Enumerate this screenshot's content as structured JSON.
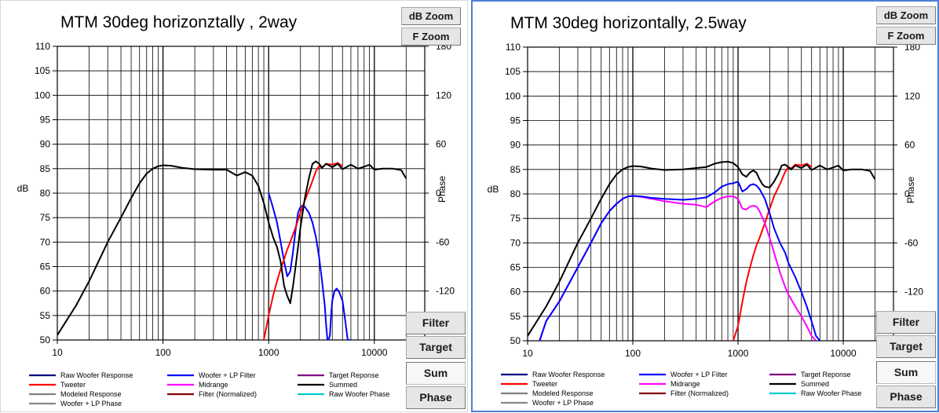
{
  "panels": [
    {
      "title": "MTM 30deg horizonztally , 2way",
      "buttons": {
        "db_zoom": "dB Zoom",
        "f_zoom": "F Zoom",
        "filter": "Filter",
        "target": "Target",
        "sum": "Sum",
        "phase": "Phase"
      }
    },
    {
      "title": "MTM 30deg horizontally, 2.5way",
      "buttons": {
        "db_zoom": "dB Zoom",
        "f_zoom": "F Zoom",
        "filter": "Filter",
        "target": "Target",
        "sum": "Sum",
        "phase": "Phase"
      }
    }
  ],
  "colors": {
    "raw_woofer": "#000080",
    "tweeter": "#ff0000",
    "modeled": "#808080",
    "woofer_lp": "#0000ff",
    "midrange": "#ff00ff",
    "filter_norm": "#800000",
    "target": "#800080",
    "summed": "#000000",
    "raw_woofer_phase": "#00cccc",
    "woofer_lp_phase": "#888888"
  },
  "chart_data": [
    {
      "type": "line",
      "title": "MTM 30deg horizonztally , 2way",
      "xlabel": "",
      "ylabel": "dB",
      "y2label": "Phase",
      "x_scale": "log",
      "xlim": [
        10,
        30000
      ],
      "ylim": [
        50,
        110
      ],
      "y2lim": [
        -180,
        180
      ],
      "grid": true,
      "x_ticks": [
        10,
        100,
        1000,
        10000
      ],
      "x_tick_labels": [
        "10",
        "100",
        "1000",
        "10000"
      ],
      "y_ticks": [
        50,
        55,
        60,
        65,
        70,
        75,
        80,
        85,
        90,
        95,
        100,
        105,
        110
      ],
      "y2_ticks": [
        -120,
        -60,
        0,
        60,
        120,
        180
      ],
      "y2_tick_labels": [
        "-120",
        "-60",
        "0",
        "60",
        "120",
        "180"
      ],
      "legend_placement": "bottom",
      "legend": [
        {
          "label": "Raw Woofer Response",
          "color": "#000080"
        },
        {
          "label": "Woofer + LP Filter",
          "color": "#0000ff"
        },
        {
          "label": "Target Reponse",
          "color": "#800080"
        },
        {
          "label": "Tweeter",
          "color": "#ff0000"
        },
        {
          "label": "Midrange",
          "color": "#ff00ff"
        },
        {
          "label": "Summed",
          "color": "#000000"
        },
        {
          "label": "Modeled Response",
          "color": "#808080"
        },
        {
          "label": "Filter (Normalized)",
          "color": "#800000"
        },
        {
          "label": "Raw Woofer Phase",
          "color": "#00cccc"
        },
        {
          "label": "Woofer + LP Phase",
          "color": "#888888"
        }
      ],
      "series": [
        {
          "name": "Summed",
          "color": "#000000",
          "x": [
            10,
            15,
            20,
            30,
            40,
            50,
            60,
            70,
            80,
            90,
            100,
            120,
            150,
            200,
            300,
            400,
            500,
            600,
            700,
            800,
            900,
            1000,
            1100,
            1200,
            1300,
            1400,
            1500,
            1600,
            1700,
            1800,
            2000,
            2200,
            2400,
            2600,
            2800,
            3000,
            3200,
            3500,
            4000,
            4500,
            5000,
            6000,
            7000,
            8000,
            9000,
            10000,
            12000,
            15000,
            18000,
            20000
          ],
          "y": [
            51,
            57,
            62,
            70,
            75,
            79,
            82,
            84,
            85,
            85.5,
            85.7,
            85.6,
            85.2,
            84.9,
            84.8,
            84.8,
            83.6,
            84.3,
            83.6,
            81.5,
            78,
            74,
            71,
            69,
            66,
            61,
            59,
            57.5,
            61,
            65,
            73,
            79,
            83,
            86,
            86.5,
            86,
            85.2,
            86,
            85.3,
            86,
            84.9,
            85.8,
            85,
            85.4,
            85.8,
            84.8,
            85,
            85,
            84.7,
            83
          ]
        },
        {
          "name": "Tweeter",
          "color": "#ff0000",
          "x": [
            900,
            1000,
            1100,
            1200,
            1300,
            1400,
            1500,
            1600,
            1800,
            2000,
            2200,
            2500,
            2800,
            3000,
            3200,
            3500,
            4000,
            4500,
            5000
          ],
          "y": [
            50,
            55,
            59,
            62,
            64.5,
            66.5,
            68.5,
            70,
            73,
            76,
            78.5,
            81.5,
            84.5,
            85.5,
            85.2,
            86,
            85.8,
            86.2,
            85.5
          ]
        },
        {
          "name": "Woofer + LP Filter",
          "color": "#0000ff",
          "x": [
            1000,
            1100,
            1200,
            1300,
            1400,
            1500,
            1600,
            1700,
            1800,
            1900,
            2000,
            2100,
            2200,
            2400,
            2600,
            2800,
            3000,
            3200,
            3400,
            3500,
            3600,
            3700,
            3800,
            3900,
            4000,
            4200,
            4400,
            4600,
            4800,
            5000,
            5300,
            5600,
            6000
          ],
          "y": [
            80,
            77,
            74,
            70,
            66,
            63,
            64,
            68,
            72.5,
            76,
            77.2,
            77.5,
            77.2,
            76,
            74,
            71,
            67,
            62,
            57,
            53,
            50,
            50,
            51,
            55,
            58,
            60,
            60.5,
            60,
            59,
            58,
            54,
            50,
            50
          ]
        }
      ]
    },
    {
      "type": "line",
      "title": "MTM 30deg horizontally, 2.5way",
      "xlabel": "",
      "ylabel": "dB",
      "y2label": "Phase",
      "x_scale": "log",
      "xlim": [
        10,
        30000
      ],
      "ylim": [
        50,
        110
      ],
      "y2lim": [
        -180,
        180
      ],
      "grid": true,
      "x_ticks": [
        10,
        100,
        1000,
        10000
      ],
      "x_tick_labels": [
        "10",
        "100",
        "1000",
        "10000"
      ],
      "y_ticks": [
        50,
        55,
        60,
        65,
        70,
        75,
        80,
        85,
        90,
        95,
        100,
        105,
        110
      ],
      "y2_ticks": [
        -120,
        -60,
        0,
        60,
        120,
        180
      ],
      "y2_tick_labels": [
        "-120",
        "-60",
        "0",
        "60",
        "120",
        "180"
      ],
      "legend_placement": "bottom",
      "legend": [
        {
          "label": "Raw Woofer Response",
          "color": "#000080"
        },
        {
          "label": "Woofer + LP Filter",
          "color": "#0000ff"
        },
        {
          "label": "Target Reponse",
          "color": "#800080"
        },
        {
          "label": "Tweeter",
          "color": "#ff0000"
        },
        {
          "label": "Midrange",
          "color": "#ff00ff"
        },
        {
          "label": "Summed",
          "color": "#000000"
        },
        {
          "label": "Modeled Response",
          "color": "#808080"
        },
        {
          "label": "Filter (Normalized)",
          "color": "#800000"
        },
        {
          "label": "Raw Woofer Phase",
          "color": "#00cccc"
        },
        {
          "label": "Woofer + LP Phase",
          "color": "#888888"
        }
      ],
      "series": [
        {
          "name": "Summed",
          "color": "#000000",
          "x": [
            10,
            15,
            20,
            30,
            40,
            50,
            60,
            70,
            80,
            90,
            100,
            120,
            150,
            200,
            300,
            400,
            500,
            600,
            700,
            800,
            900,
            1000,
            1100,
            1200,
            1300,
            1400,
            1500,
            1600,
            1700,
            1800,
            2000,
            2200,
            2400,
            2600,
            2800,
            3000,
            3200,
            3500,
            4000,
            4500,
            5000,
            6000,
            7000,
            8000,
            9000,
            10000,
            12000,
            15000,
            18000,
            20000
          ],
          "y": [
            51,
            57,
            62,
            70,
            75,
            79,
            82,
            84,
            85,
            85.5,
            85.7,
            85.6,
            85.2,
            84.9,
            85,
            85.3,
            85.5,
            86.2,
            86.5,
            86.6,
            86.3,
            85.5,
            84,
            83.5,
            84.4,
            84.8,
            84.3,
            83,
            82,
            81.5,
            81.3,
            82.5,
            84,
            85.8,
            86,
            85.5,
            85,
            85.8,
            85.3,
            86,
            84.9,
            85.8,
            85,
            85.4,
            85.8,
            84.8,
            85,
            85,
            84.7,
            83
          ]
        },
        {
          "name": "Woofer + LP Filter",
          "color": "#0000ff",
          "x": [
            13,
            15,
            20,
            30,
            40,
            50,
            60,
            70,
            80,
            90,
            100,
            120,
            150,
            200,
            300,
            400,
            500,
            600,
            700,
            800,
            900,
            1000,
            1100,
            1200,
            1300,
            1400,
            1500,
            1600,
            1800,
            2000,
            2200,
            2500,
            2800,
            3000,
            3500,
            4000,
            4500,
            5000,
            5500,
            6000
          ],
          "y": [
            50,
            54,
            58,
            65,
            70,
            74,
            76.5,
            78,
            79,
            79.5,
            79.6,
            79.5,
            79.2,
            79,
            78.8,
            79,
            79.3,
            80.3,
            81.5,
            82,
            82.2,
            82.5,
            80.5,
            81,
            81.8,
            82,
            81.7,
            81,
            79,
            76,
            73,
            70,
            68,
            66,
            63,
            60,
            57,
            54,
            51,
            50
          ]
        },
        {
          "name": "Midrange",
          "color": "#ff00ff",
          "x": [
            13,
            15,
            20,
            30,
            40,
            50,
            60,
            70,
            80,
            90,
            100,
            120,
            150,
            200,
            300,
            400,
            500,
            600,
            700,
            800,
            900,
            1000,
            1100,
            1200,
            1300,
            1400,
            1500,
            1600,
            1800,
            2000,
            2200,
            2500,
            2800,
            3000,
            3500,
            4000,
            4500,
            5000,
            5500
          ],
          "y": [
            50,
            54,
            58,
            65,
            70,
            74,
            76.5,
            78,
            79,
            79.5,
            79.6,
            79.4,
            79,
            78.5,
            78,
            77.8,
            77.3,
            78.5,
            79.2,
            79.5,
            79.5,
            79,
            77,
            76.8,
            77.4,
            77.6,
            77.4,
            76.5,
            74,
            71,
            68,
            64,
            61,
            59.5,
            57,
            55,
            53,
            51,
            50
          ]
        },
        {
          "name": "Tweeter",
          "color": "#ff0000",
          "x": [
            900,
            1000,
            1100,
            1200,
            1300,
            1400,
            1500,
            1600,
            1800,
            2000,
            2200,
            2500,
            2800,
            3000,
            3200,
            3500,
            4000,
            4500,
            5000
          ],
          "y": [
            50,
            53,
            58,
            62,
            65,
            67.5,
            69.5,
            71,
            74,
            77,
            79.5,
            82,
            84.5,
            85.5,
            85.2,
            86,
            85.8,
            86.2,
            85.5
          ]
        }
      ]
    }
  ]
}
